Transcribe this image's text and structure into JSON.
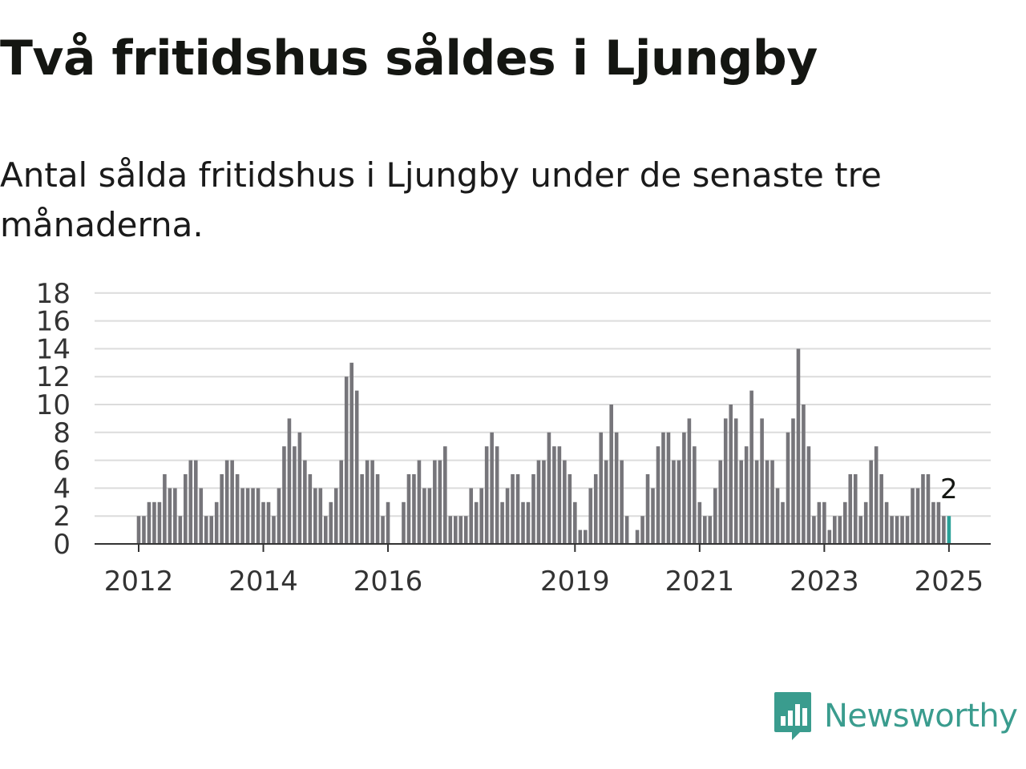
{
  "header": {
    "title": "Två fritidshus såldes i Ljungby",
    "subtitle": "Antal sålda fritidshus i Ljungby under de senaste tre månaderna."
  },
  "brand": {
    "name": "Newsworthy",
    "color": "#3a9c8e"
  },
  "chart_data": {
    "type": "bar",
    "title": "Två fritidshus såldes i Ljungby",
    "subtitle": "Antal sålda fritidshus i Ljungby under de senaste tre månaderna.",
    "xlabel": "",
    "ylabel": "",
    "ylim": [
      0,
      18
    ],
    "yticks": [
      0,
      2,
      4,
      6,
      8,
      10,
      12,
      14,
      16,
      18
    ],
    "grid": true,
    "bar_color": "#76757a",
    "highlight_color": "#2aa198",
    "start": "2012-01",
    "x_tick_labels": [
      {
        "label": "2012",
        "index": 0
      },
      {
        "label": "2014",
        "index": 24
      },
      {
        "label": "2016",
        "index": 48
      },
      {
        "label": "2019",
        "index": 84
      },
      {
        "label": "2021",
        "index": 108
      },
      {
        "label": "2023",
        "index": 132
      },
      {
        "label": "2025",
        "index": 156
      }
    ],
    "values": [
      2,
      2,
      3,
      3,
      3,
      5,
      4,
      4,
      2,
      5,
      6,
      6,
      4,
      2,
      2,
      3,
      5,
      6,
      6,
      5,
      4,
      4,
      4,
      4,
      3,
      3,
      2,
      4,
      7,
      9,
      7,
      8,
      6,
      5,
      4,
      4,
      2,
      3,
      4,
      6,
      12,
      13,
      11,
      5,
      6,
      6,
      5,
      2,
      3,
      0,
      0,
      3,
      5,
      5,
      6,
      4,
      4,
      6,
      6,
      7,
      2,
      2,
      2,
      2,
      4,
      3,
      4,
      7,
      8,
      7,
      3,
      4,
      5,
      5,
      3,
      3,
      5,
      6,
      6,
      8,
      7,
      7,
      6,
      5,
      3,
      1,
      1,
      4,
      5,
      8,
      6,
      10,
      8,
      6,
      2,
      0,
      1,
      2,
      5,
      4,
      7,
      8,
      8,
      6,
      6,
      8,
      9,
      7,
      3,
      2,
      2,
      4,
      6,
      9,
      10,
      9,
      6,
      7,
      11,
      6,
      9,
      6,
      6,
      4,
      3,
      8,
      9,
      14,
      10,
      7,
      2,
      3,
      3,
      1,
      2,
      2,
      3,
      5,
      5,
      2,
      3,
      6,
      7,
      5,
      3,
      2,
      2,
      2,
      2,
      4,
      4,
      5,
      5,
      3,
      3,
      2,
      2
    ],
    "last_value_label": "2"
  }
}
